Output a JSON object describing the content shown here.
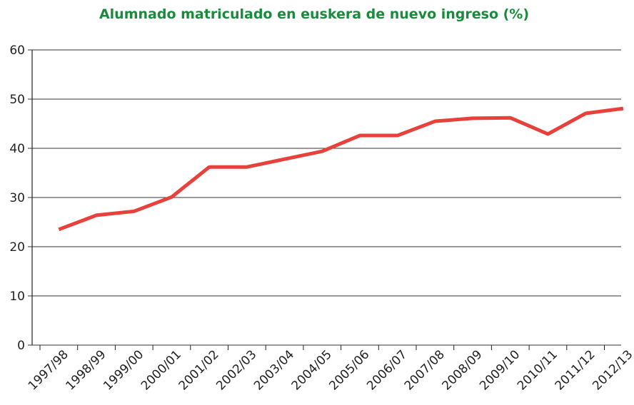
{
  "chart_data": {
    "type": "line",
    "title": "Alumnado matriculado en euskera de nuevo ingreso (%)",
    "categories": [
      "1997/98",
      "1998/99",
      "1999/00",
      "2000/01",
      "2001/02",
      "2002/03",
      "2003/04",
      "2004/05",
      "2005/06",
      "2006/07",
      "2007/08",
      "2008/09",
      "2009/10",
      "2010/11",
      "2011/12",
      "2012/13"
    ],
    "series": [
      {
        "name": "Alumnado matriculado en euskera",
        "color": "#e8403a",
        "values": [
          23.5,
          26.4,
          27.2,
          30.1,
          36.2,
          36.2,
          37.8,
          39.4,
          42.6,
          42.6,
          45.5,
          46.1,
          46.2,
          42.9,
          47.1,
          48.1
        ]
      }
    ],
    "ylim": [
      0,
      60
    ],
    "yticks": [
      0,
      10,
      20,
      30,
      40,
      50,
      60
    ],
    "grid": true
  }
}
